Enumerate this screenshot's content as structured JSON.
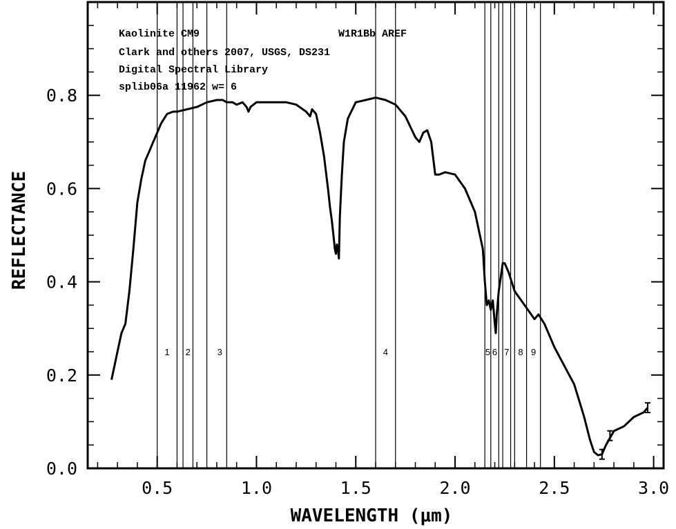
{
  "chart_data": {
    "type": "line",
    "title": "",
    "xlabel": "WAVELENGTH (μm)",
    "ylabel": "REFLECTANCE",
    "xlim": [
      0.15,
      3.05
    ],
    "ylim": [
      0.0,
      1.0
    ],
    "xticks": [
      0.5,
      1.0,
      1.5,
      2.0,
      2.5,
      3.0
    ],
    "xtick_labels": [
      "0.5",
      "1.0",
      "1.5",
      "2.0",
      "2.5",
      "3.0"
    ],
    "yticks": [
      0.0,
      0.2,
      0.4,
      0.6,
      0.8
    ],
    "ytick_labels": [
      "0.0",
      "0.2",
      "0.4",
      "0.6",
      "0.8"
    ],
    "grid": false,
    "annotations": [
      "Kaolinite CM9",
      "W1R1Bb AREF",
      "Clark and others 2007, USGS, DS231",
      "Digital Spectral Library",
      "splib06a 11962 w= 6"
    ],
    "band_lines": [
      0.5,
      0.6,
      0.63,
      0.68,
      0.75,
      0.85,
      1.6,
      1.7,
      2.15,
      2.18,
      2.22,
      2.24,
      2.28,
      2.3,
      2.36,
      2.43
    ],
    "band_labels": [
      {
        "text": "1",
        "x": 0.55
      },
      {
        "text": "2",
        "x": 0.655
      },
      {
        "text": "3",
        "x": 0.815
      },
      {
        "text": "4",
        "x": 1.65
      },
      {
        "text": "5",
        "x": 2.165
      },
      {
        "text": "6",
        "x": 2.2
      },
      {
        "text": "7",
        "x": 2.26
      },
      {
        "text": "8",
        "x": 2.33
      },
      {
        "text": "9",
        "x": 2.395
      }
    ],
    "band_label_y": 0.25,
    "series": [
      {
        "color": "#000000",
        "x": [
          0.27,
          0.28,
          0.3,
          0.32,
          0.34,
          0.36,
          0.38,
          0.4,
          0.42,
          0.44,
          0.46,
          0.48,
          0.5,
          0.52,
          0.55,
          0.58,
          0.6,
          0.65,
          0.7,
          0.75,
          0.8,
          0.83,
          0.85,
          0.88,
          0.9,
          0.93,
          0.95,
          0.96,
          0.97,
          1.0,
          1.05,
          1.1,
          1.15,
          1.2,
          1.25,
          1.27,
          1.28,
          1.3,
          1.32,
          1.34,
          1.36,
          1.37,
          1.38,
          1.39,
          1.395,
          1.4,
          1.405,
          1.41,
          1.415,
          1.42,
          1.43,
          1.44,
          1.46,
          1.5,
          1.55,
          1.6,
          1.65,
          1.7,
          1.75,
          1.8,
          1.82,
          1.84,
          1.86,
          1.88,
          1.9,
          1.92,
          1.95,
          2.0,
          2.05,
          2.1,
          2.14,
          2.15,
          2.16,
          2.17,
          2.18,
          2.19,
          2.2,
          2.205,
          2.21,
          2.22,
          2.24,
          2.25,
          2.27,
          2.3,
          2.35,
          2.4,
          2.42,
          2.45,
          2.5,
          2.55,
          2.6,
          2.65,
          2.68,
          2.7,
          2.72,
          2.74,
          2.76,
          2.8,
          2.85,
          2.9,
          2.95,
          2.97
        ],
        "y": [
          0.19,
          0.21,
          0.25,
          0.29,
          0.31,
          0.38,
          0.47,
          0.57,
          0.62,
          0.66,
          0.68,
          0.7,
          0.72,
          0.74,
          0.76,
          0.765,
          0.765,
          0.77,
          0.775,
          0.785,
          0.79,
          0.79,
          0.785,
          0.785,
          0.78,
          0.785,
          0.775,
          0.765,
          0.775,
          0.785,
          0.785,
          0.785,
          0.785,
          0.78,
          0.765,
          0.755,
          0.77,
          0.76,
          0.72,
          0.67,
          0.6,
          0.56,
          0.53,
          0.49,
          0.47,
          0.46,
          0.48,
          0.47,
          0.45,
          0.54,
          0.63,
          0.7,
          0.75,
          0.785,
          0.79,
          0.795,
          0.79,
          0.78,
          0.755,
          0.71,
          0.7,
          0.72,
          0.725,
          0.7,
          0.63,
          0.63,
          0.635,
          0.63,
          0.6,
          0.55,
          0.47,
          0.4,
          0.35,
          0.36,
          0.34,
          0.36,
          0.31,
          0.29,
          0.33,
          0.38,
          0.44,
          0.44,
          0.42,
          0.38,
          0.35,
          0.32,
          0.33,
          0.31,
          0.26,
          0.22,
          0.18,
          0.11,
          0.06,
          0.035,
          0.028,
          0.03,
          0.05,
          0.08,
          0.09,
          0.11,
          0.12,
          0.13
        ]
      }
    ]
  }
}
